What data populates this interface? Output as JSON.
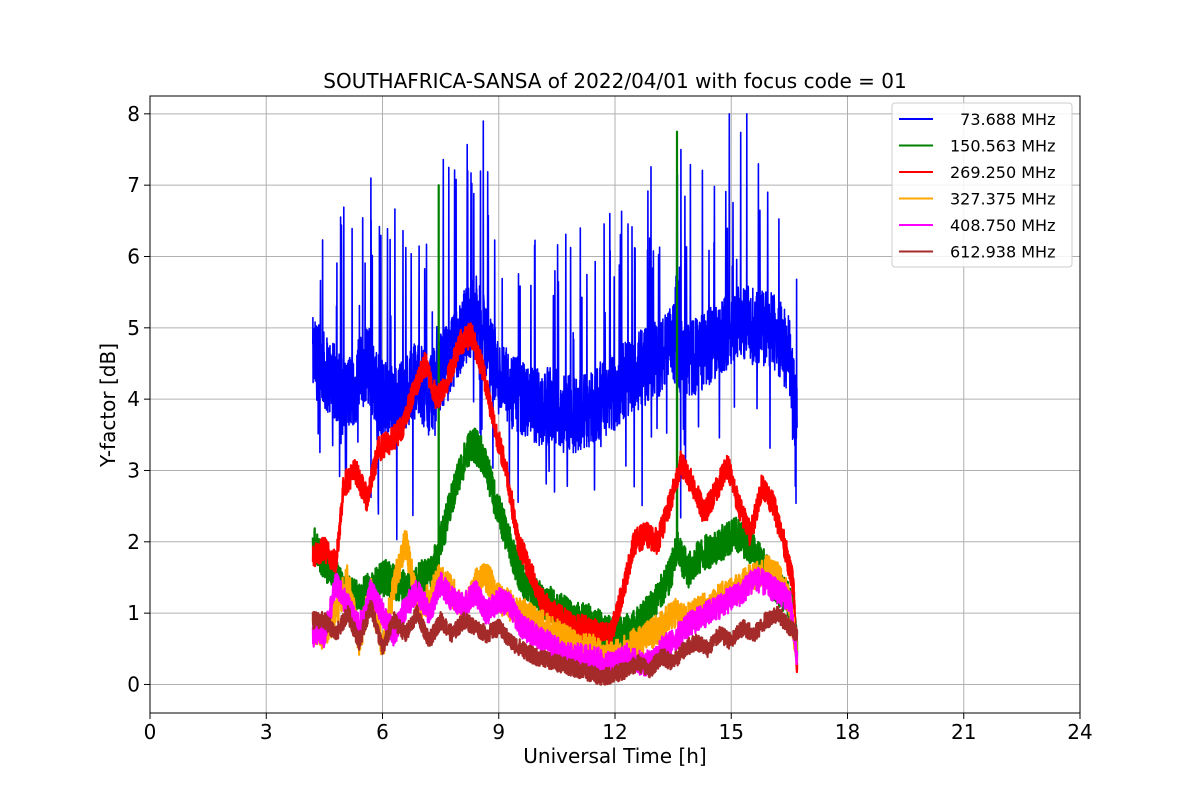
{
  "chart_data": {
    "type": "line",
    "title": "SOUTHAFRICA-SANSA of 2022/04/01 with focus code = 01",
    "xlabel": "Universal Time [h]",
    "ylabel": "Y-factor [dB]",
    "xlim": [
      0,
      24
    ],
    "ylim": [
      -0.4,
      8.25
    ],
    "xticks": [
      0,
      3,
      6,
      9,
      12,
      15,
      18,
      21,
      24
    ],
    "yticks": [
      0,
      1,
      2,
      3,
      4,
      5,
      6,
      7,
      8
    ],
    "grid": true,
    "legend_position": "top-right",
    "series": [
      {
        "name": "  73.688 MHz",
        "color": "#0000ff",
        "x": [
          4.2,
          4.5,
          4.8,
          5.0,
          5.3,
          5.6,
          5.8,
          6.0,
          6.3,
          6.6,
          6.9,
          7.2,
          7.5,
          7.8,
          8.1,
          8.4,
          8.7,
          9.0,
          9.3,
          9.6,
          9.9,
          10.2,
          10.5,
          10.8,
          11.1,
          11.4,
          11.7,
          12.0,
          12.3,
          12.6,
          12.9,
          13.2,
          13.5,
          13.8,
          14.1,
          14.4,
          14.7,
          15.0,
          15.3,
          15.6,
          15.9,
          16.2,
          16.5,
          16.7
        ],
        "y": [
          4.6,
          4.4,
          4.2,
          4.0,
          4.2,
          4.5,
          4.2,
          4.0,
          3.9,
          4.1,
          4.3,
          4.0,
          4.4,
          4.6,
          5.0,
          5.2,
          4.8,
          4.3,
          4.1,
          4.0,
          3.9,
          3.9,
          3.9,
          3.8,
          3.8,
          3.9,
          4.0,
          4.1,
          4.3,
          4.4,
          4.5,
          4.6,
          4.8,
          4.5,
          4.6,
          4.7,
          4.9,
          5.0,
          5.1,
          5.0,
          5.0,
          4.9,
          4.6,
          3.6
        ],
        "annotations_peaks": [
          {
            "x": 5.7,
            "y": 7.1
          },
          {
            "x": 8.2,
            "y": 7.2
          },
          {
            "x": 8.6,
            "y": 7.9
          },
          {
            "x": 13.7,
            "y": 7.5
          },
          {
            "x": 15.7,
            "y": 7.3
          }
        ]
      },
      {
        "name": "150.563 MHz",
        "color": "#008000",
        "x": [
          4.2,
          4.5,
          4.8,
          5.0,
          5.4,
          5.8,
          6.1,
          6.4,
          6.7,
          7.0,
          7.3,
          7.5,
          7.8,
          8.0,
          8.3,
          8.6,
          8.9,
          9.2,
          9.5,
          9.8,
          10.1,
          10.4,
          10.7,
          11.0,
          11.3,
          11.6,
          11.9,
          12.2,
          12.5,
          12.8,
          13.1,
          13.4,
          13.6,
          13.9,
          14.2,
          14.5,
          14.8,
          15.1,
          15.4,
          15.7,
          16.0,
          16.3,
          16.6,
          16.7
        ],
        "y": [
          2.0,
          1.7,
          1.5,
          1.3,
          1.2,
          1.4,
          1.5,
          1.4,
          1.3,
          1.5,
          1.6,
          2.0,
          2.6,
          3.0,
          3.4,
          3.2,
          2.6,
          2.1,
          1.6,
          1.3,
          1.2,
          1.1,
          1.0,
          0.9,
          0.9,
          0.8,
          0.7,
          0.7,
          0.8,
          1.0,
          1.2,
          1.5,
          1.9,
          1.6,
          1.8,
          1.9,
          2.0,
          2.1,
          2.0,
          1.8,
          1.5,
          1.3,
          1.1,
          0.4
        ],
        "annotations_peaks": [
          {
            "x": 7.45,
            "y": 7.0
          },
          {
            "x": 13.6,
            "y": 7.75
          }
        ]
      },
      {
        "name": "269.250 MHz",
        "color": "#ff0000",
        "x": [
          4.2,
          4.5,
          4.8,
          5.0,
          5.3,
          5.6,
          5.9,
          6.2,
          6.5,
          6.8,
          7.1,
          7.4,
          7.7,
          8.0,
          8.3,
          8.6,
          8.9,
          9.2,
          9.5,
          9.8,
          10.1,
          10.4,
          10.7,
          11.0,
          11.3,
          11.6,
          11.9,
          12.2,
          12.5,
          12.8,
          13.1,
          13.4,
          13.7,
          14.0,
          14.3,
          14.6,
          14.9,
          15.2,
          15.5,
          15.8,
          16.1,
          16.4,
          16.6,
          16.7
        ],
        "y": [
          1.8,
          1.9,
          1.7,
          2.8,
          3.0,
          2.6,
          3.3,
          3.4,
          3.6,
          4.1,
          4.5,
          4.0,
          4.3,
          4.8,
          4.9,
          4.4,
          3.6,
          3.0,
          2.0,
          1.6,
          1.2,
          1.0,
          0.9,
          0.8,
          0.8,
          0.7,
          0.7,
          1.3,
          2.0,
          2.1,
          2.0,
          2.5,
          3.1,
          2.8,
          2.4,
          2.7,
          3.1,
          2.5,
          2.1,
          2.8,
          2.5,
          1.9,
          1.4,
          0.2
        ]
      },
      {
        "name": "327.375 MHz",
        "color": "#ffa500",
        "x": [
          4.2,
          4.5,
          4.8,
          5.1,
          5.4,
          5.7,
          6.0,
          6.3,
          6.6,
          6.9,
          7.2,
          7.5,
          7.8,
          8.1,
          8.4,
          8.7,
          9.0,
          9.3,
          9.6,
          9.9,
          10.2,
          10.5,
          10.8,
          11.1,
          11.4,
          11.7,
          12.0,
          12.3,
          12.6,
          12.9,
          13.2,
          13.5,
          13.8,
          14.1,
          14.4,
          14.7,
          15.0,
          15.3,
          15.6,
          15.9,
          16.2,
          16.5,
          16.7
        ],
        "y": [
          0.8,
          0.7,
          1.0,
          1.5,
          0.6,
          1.3,
          0.5,
          1.4,
          2.0,
          1.1,
          1.2,
          1.5,
          1.3,
          1.0,
          1.4,
          1.5,
          1.2,
          1.1,
          1.0,
          0.9,
          0.8,
          0.7,
          0.6,
          0.5,
          0.5,
          0.4,
          0.4,
          0.5,
          0.6,
          0.7,
          0.8,
          1.0,
          0.9,
          1.0,
          1.1,
          1.2,
          1.3,
          1.4,
          1.5,
          1.6,
          1.5,
          1.2,
          0.4
        ]
      },
      {
        "name": "408.750 MHz",
        "color": "#ff00ff",
        "x": [
          4.2,
          4.5,
          4.8,
          5.1,
          5.4,
          5.7,
          6.0,
          6.3,
          6.6,
          6.9,
          7.2,
          7.5,
          7.8,
          8.1,
          8.4,
          8.7,
          9.0,
          9.3,
          9.6,
          9.9,
          10.2,
          10.5,
          10.8,
          11.1,
          11.4,
          11.7,
          12.0,
          12.3,
          12.6,
          12.9,
          13.2,
          13.5,
          13.8,
          14.1,
          14.4,
          14.7,
          15.0,
          15.3,
          15.6,
          15.9,
          16.2,
          16.5,
          16.7
        ],
        "y": [
          0.7,
          0.7,
          1.4,
          1.1,
          0.8,
          1.3,
          1.0,
          0.7,
          1.1,
          1.3,
          1.0,
          1.4,
          1.2,
          1.1,
          1.3,
          1.0,
          1.2,
          1.1,
          0.8,
          0.7,
          0.6,
          0.5,
          0.4,
          0.4,
          0.4,
          0.3,
          0.3,
          0.4,
          0.3,
          0.3,
          0.5,
          0.6,
          0.8,
          0.9,
          1.0,
          1.1,
          1.2,
          1.3,
          1.5,
          1.4,
          1.3,
          1.2,
          0.4
        ]
      },
      {
        "name": "612.938 MHz",
        "color": "#a52a2a",
        "x": [
          4.2,
          4.5,
          4.8,
          5.1,
          5.4,
          5.7,
          6.0,
          6.3,
          6.6,
          6.9,
          7.2,
          7.5,
          7.8,
          8.1,
          8.4,
          8.7,
          9.0,
          9.3,
          9.6,
          9.9,
          10.2,
          10.5,
          10.8,
          11.1,
          11.4,
          11.7,
          12.0,
          12.3,
          12.6,
          12.9,
          13.2,
          13.5,
          13.8,
          14.1,
          14.4,
          14.7,
          15.0,
          15.3,
          15.6,
          15.9,
          16.2,
          16.5,
          16.7
        ],
        "y": [
          0.9,
          0.9,
          0.7,
          1.0,
          0.6,
          1.1,
          0.5,
          0.9,
          0.7,
          1.0,
          0.6,
          0.9,
          0.7,
          0.9,
          0.8,
          0.7,
          0.8,
          0.6,
          0.5,
          0.4,
          0.35,
          0.3,
          0.25,
          0.2,
          0.15,
          0.1,
          0.15,
          0.2,
          0.3,
          0.2,
          0.4,
          0.3,
          0.5,
          0.6,
          0.5,
          0.7,
          0.6,
          0.8,
          0.7,
          0.9,
          1.0,
          0.8,
          0.7
        ]
      }
    ]
  }
}
